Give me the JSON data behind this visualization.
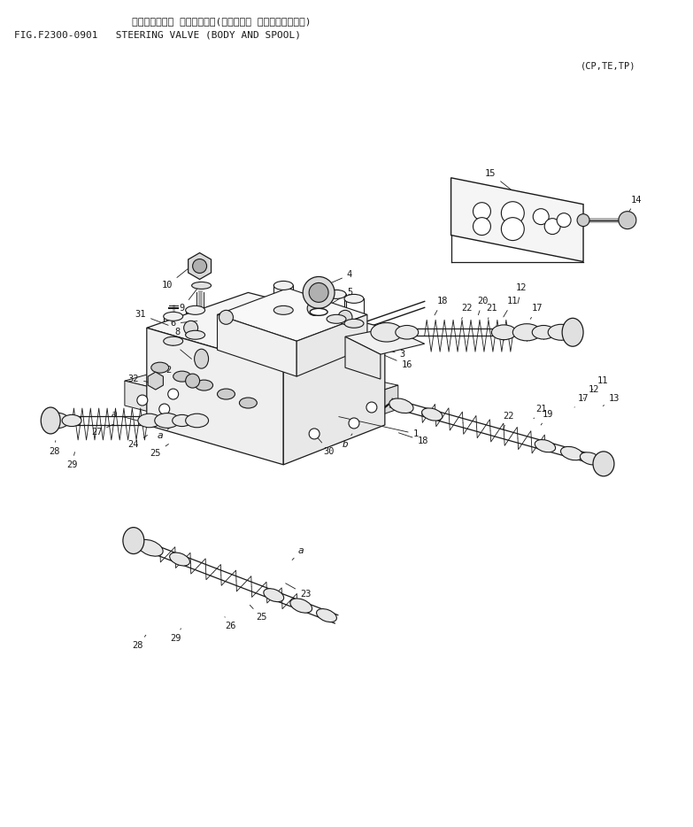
{
  "title_jp": "ステアリング゛ ハ゛ルフ゛　(ボディー・ オヨビ　スプール)",
  "title_en": "FIG.F2300-0901   STEERING VALVE (BODY AND SPOOL)",
  "subtitle": "(CP,TE,TP)",
  "bg_color": "#ffffff",
  "lc": "#1a1a1a",
  "fig_width": 7.83,
  "fig_height": 9.34,
  "dpi": 100
}
